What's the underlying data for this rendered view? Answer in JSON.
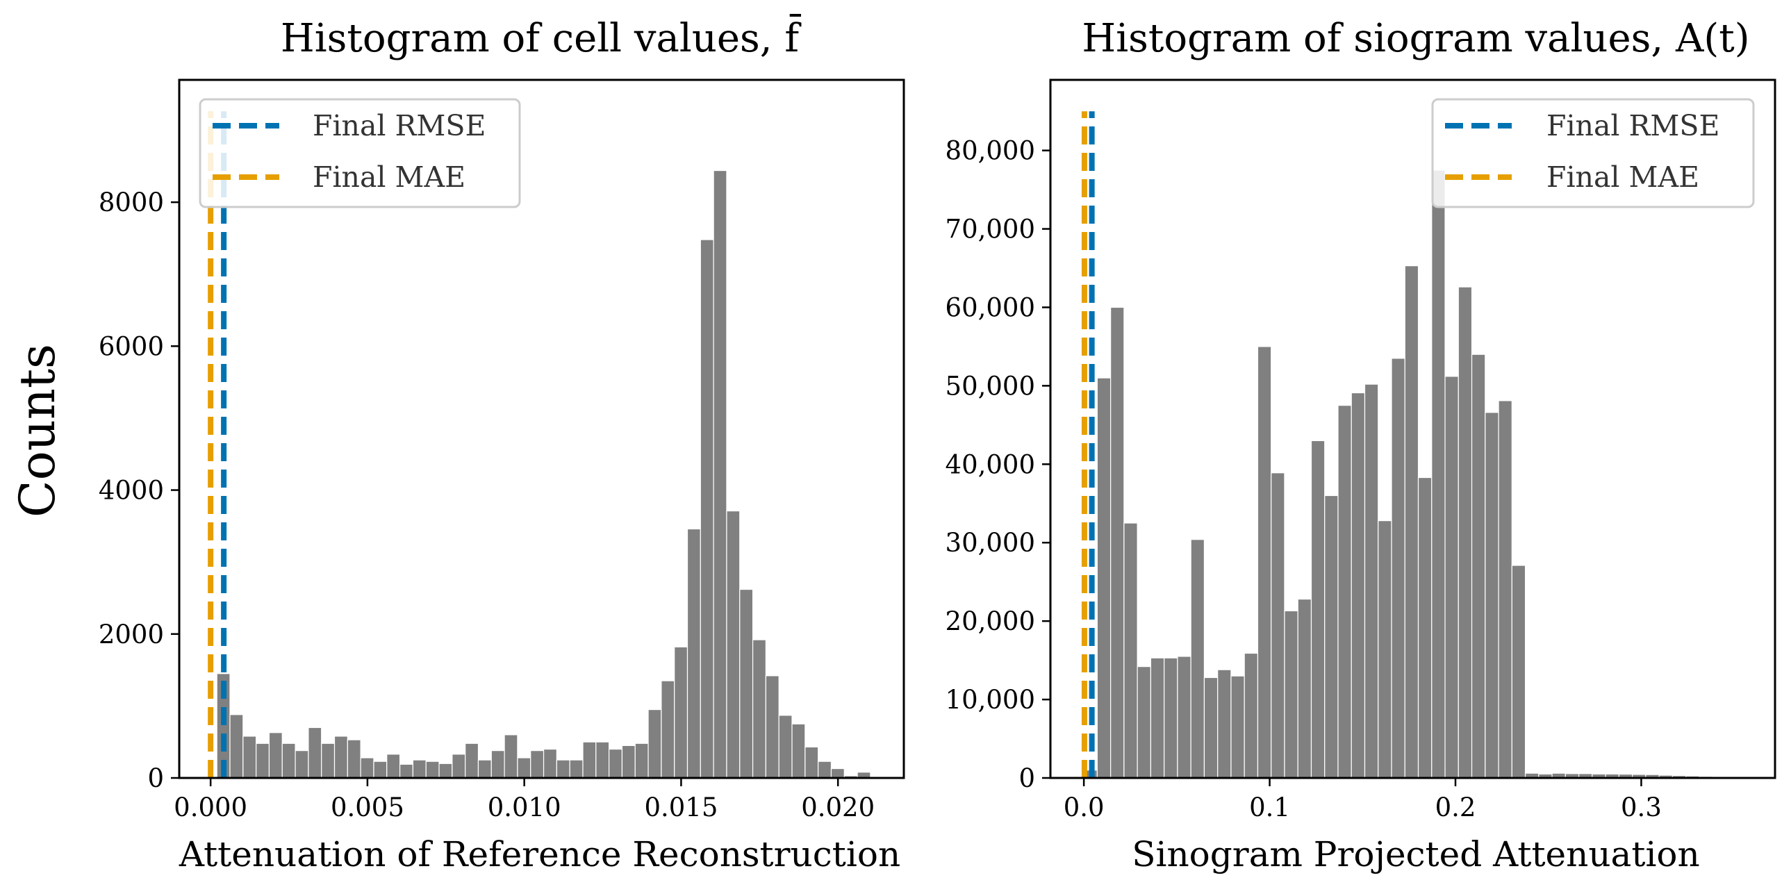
{
  "colors": {
    "bar": "#808080",
    "bar_edge": "#ffffff",
    "rmse": "#0072b2",
    "mae": "#e69f00",
    "axis": "#000000"
  },
  "chart_data": [
    {
      "type": "bar",
      "title": "Histogram of cell values, f̄",
      "xlabel": "Attenuation of Reference Reconstruction",
      "ylabel": "Counts",
      "xlim": [
        -0.001,
        0.0221
      ],
      "ylim": [
        0,
        9700
      ],
      "xticks": [
        0.0,
        0.005,
        0.01,
        0.015,
        0.02
      ],
      "xtick_labels": [
        "0.000",
        "0.005",
        "0.010",
        "0.015",
        "0.020"
      ],
      "yticks": [
        0,
        2000,
        4000,
        6000,
        8000
      ],
      "ytick_labels": [
        "0",
        "2000",
        "4000",
        "6000",
        "8000"
      ],
      "bin_start": 0.0002,
      "bin_width": 0.0004167,
      "values": [
        1450,
        880,
        580,
        480,
        630,
        480,
        380,
        700,
        480,
        580,
        530,
        280,
        230,
        330,
        190,
        250,
        230,
        200,
        330,
        480,
        250,
        380,
        600,
        280,
        380,
        400,
        250,
        250,
        500,
        500,
        400,
        450,
        480,
        950,
        1350,
        1820,
        3460,
        7480,
        8440,
        3710,
        2620,
        1920,
        1420,
        870,
        750,
        430,
        230,
        130,
        30,
        80
      ],
      "vlines": [
        {
          "name": "Final RMSE",
          "x": 0.00042,
          "color": "#0072b2"
        },
        {
          "name": "Final MAE",
          "x": 0.0,
          "color": "#e69f00"
        }
      ],
      "legend_location": "top-left"
    },
    {
      "type": "bar",
      "title": "Histogram of siogram values, A(t)",
      "xlabel": "Sinogram Projected Attenuation",
      "ylabel": "",
      "xlim": [
        -0.018,
        0.372
      ],
      "ylim": [
        0,
        89000
      ],
      "xticks": [
        0.0,
        0.1,
        0.2,
        0.3
      ],
      "xtick_labels": [
        "0.0",
        "0.1",
        "0.2",
        "0.3"
      ],
      "yticks": [
        0,
        10000,
        20000,
        30000,
        40000,
        50000,
        60000,
        70000,
        80000
      ],
      "ytick_labels": [
        "0",
        "10,000",
        "20,000",
        "30,000",
        "40,000",
        "50,000",
        "60,000",
        "70,000",
        "80,000"
      ],
      "bin_start": 0.0,
      "bin_width": 0.0072,
      "values": [
        1000,
        51000,
        60000,
        32500,
        14200,
        15300,
        15300,
        15500,
        30400,
        12800,
        13800,
        13000,
        15900,
        55000,
        38900,
        21300,
        22800,
        43000,
        36000,
        47500,
        49100,
        50200,
        32800,
        53500,
        65300,
        38300,
        77500,
        51200,
        62600,
        54000,
        46600,
        48100,
        27100,
        600,
        500,
        600,
        550,
        550,
        500,
        500,
        480,
        450,
        430,
        350,
        300,
        250,
        200,
        150,
        100,
        80
      ],
      "vlines": [
        {
          "name": "Final RMSE",
          "x": 0.0043,
          "color": "#0072b2"
        },
        {
          "name": "Final MAE",
          "x": 0.0003,
          "color": "#e69f00"
        }
      ],
      "legend_location": "top-right"
    }
  ]
}
